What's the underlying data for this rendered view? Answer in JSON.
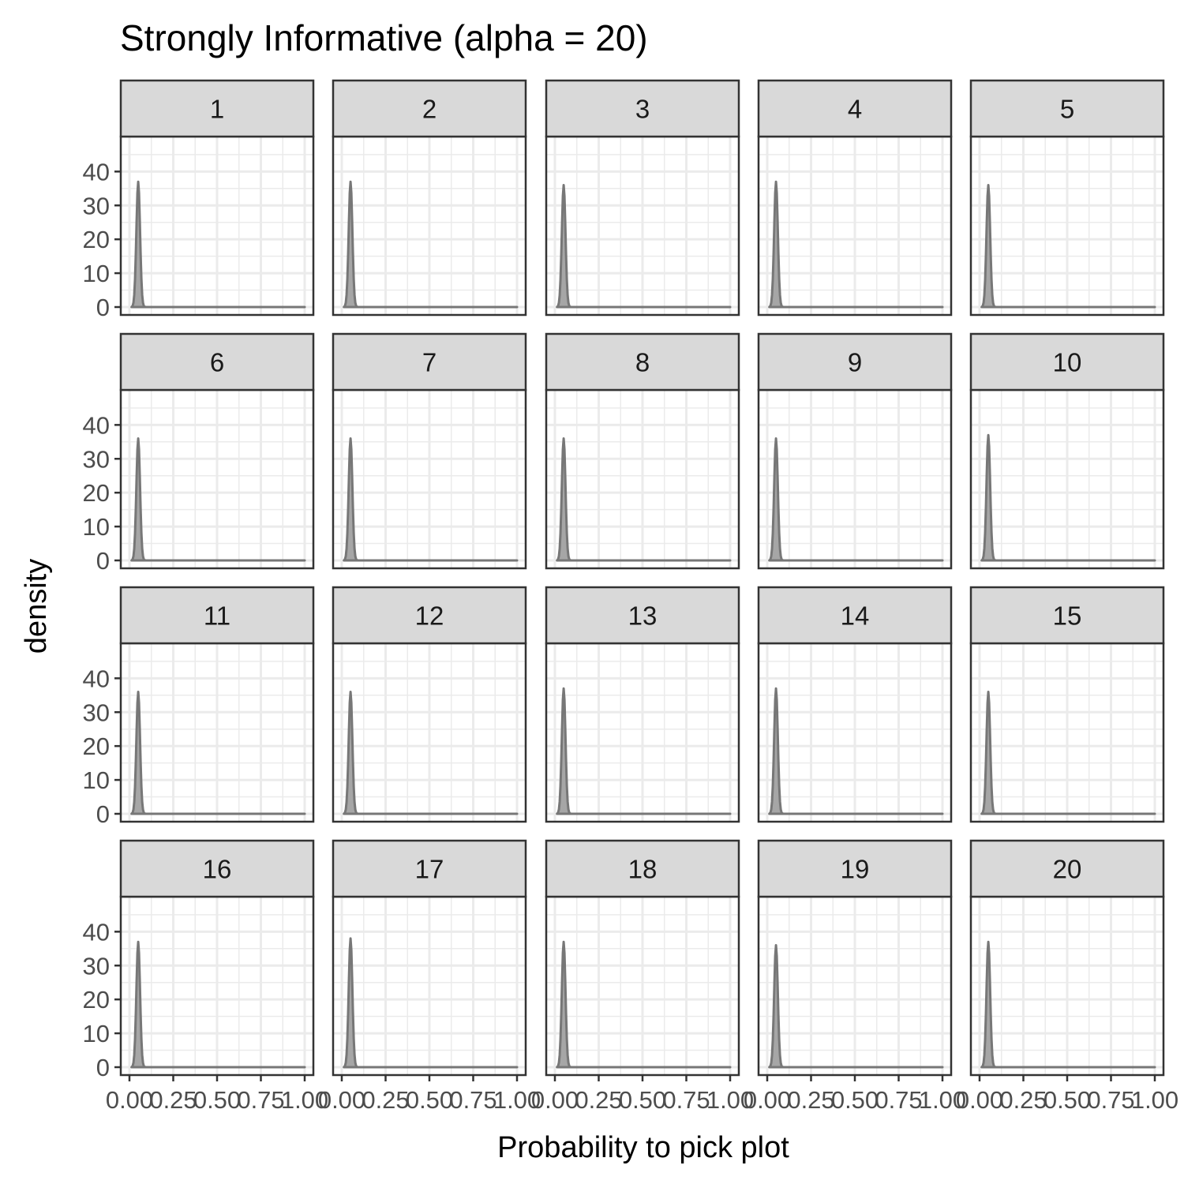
{
  "chart_data": {
    "type": "area",
    "title": "Strongly Informative (alpha = 20)",
    "xlabel": "Probability to pick plot",
    "ylabel": "density",
    "xlim": [
      0,
      1
    ],
    "ylim": [
      0,
      48
    ],
    "x_ticks": [
      0,
      0.25,
      0.5,
      0.75,
      1
    ],
    "x_tick_labels": [
      "0.00",
      "0.25",
      "0.50",
      "0.75",
      "1.00"
    ],
    "y_ticks": [
      0,
      10,
      20,
      30,
      40
    ],
    "y_tick_labels": [
      "0",
      "10",
      "20",
      "30",
      "40"
    ],
    "grid": true,
    "layout": {
      "rows": 4,
      "cols": 5
    },
    "panels": [
      {
        "label": "1",
        "mode": 0.05,
        "peak": 37
      },
      {
        "label": "2",
        "mode": 0.05,
        "peak": 37
      },
      {
        "label": "3",
        "mode": 0.05,
        "peak": 36
      },
      {
        "label": "4",
        "mode": 0.05,
        "peak": 37
      },
      {
        "label": "5",
        "mode": 0.05,
        "peak": 36
      },
      {
        "label": "6",
        "mode": 0.05,
        "peak": 36
      },
      {
        "label": "7",
        "mode": 0.05,
        "peak": 36
      },
      {
        "label": "8",
        "mode": 0.05,
        "peak": 36
      },
      {
        "label": "9",
        "mode": 0.05,
        "peak": 36
      },
      {
        "label": "10",
        "mode": 0.05,
        "peak": 37
      },
      {
        "label": "11",
        "mode": 0.05,
        "peak": 36
      },
      {
        "label": "12",
        "mode": 0.05,
        "peak": 36
      },
      {
        "label": "13",
        "mode": 0.05,
        "peak": 37
      },
      {
        "label": "14",
        "mode": 0.05,
        "peak": 37
      },
      {
        "label": "15",
        "mode": 0.05,
        "peak": 36
      },
      {
        "label": "16",
        "mode": 0.05,
        "peak": 37
      },
      {
        "label": "17",
        "mode": 0.05,
        "peak": 38
      },
      {
        "label": "18",
        "mode": 0.05,
        "peak": 37
      },
      {
        "label": "19",
        "mode": 0.05,
        "peak": 36
      },
      {
        "label": "20",
        "mode": 0.05,
        "peak": 37
      }
    ],
    "colors": {
      "fill": "#a6a6a6",
      "line": "#777777",
      "strip": "#d9d9d9",
      "border": "#333333",
      "grid": "#ebebeb"
    }
  }
}
